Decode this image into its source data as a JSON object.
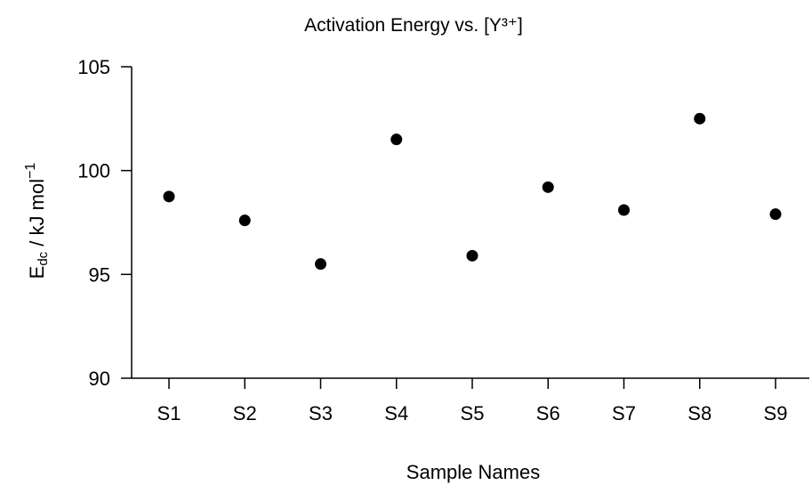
{
  "chart_data": {
    "type": "scatter",
    "title": "Activation Energy vs. [Y³⁺]",
    "xlabel": "Sample Names",
    "ylabel": {
      "main": "E",
      "subscript": "dc",
      "unit": " / kJ mol",
      "superscript": "−1"
    },
    "categories": [
      "S1",
      "S2",
      "S3",
      "S4",
      "S5",
      "S6",
      "S7",
      "S8",
      "S9"
    ],
    "values": [
      98.75,
      97.6,
      95.5,
      101.5,
      95.9,
      99.2,
      98.1,
      102.5,
      97.9
    ],
    "ylim": [
      90,
      105
    ],
    "yticks": [
      "90",
      "95",
      "100",
      "105"
    ],
    "grid": false,
    "marker_color": "#000000"
  }
}
